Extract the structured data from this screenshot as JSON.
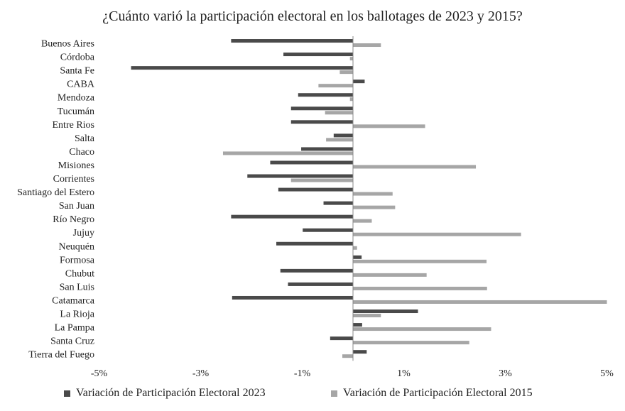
{
  "chart_data": {
    "type": "bar",
    "orientation": "horizontal",
    "title": "¿Cuánto varió la participación electoral en los ballotages de 2023 y 2015?",
    "xlabel": "",
    "ylabel": "",
    "xlim": [
      -5,
      5
    ],
    "xticks": [
      "-5%",
      "-3%",
      "-1%",
      "1%",
      "3%",
      "5%"
    ],
    "xtick_values": [
      -5,
      -3,
      -1,
      1,
      3,
      5
    ],
    "grid": false,
    "legend_position": "bottom",
    "categories": [
      "Buenos Aires",
      "Córdoba",
      "Santa Fe",
      "CABA",
      "Mendoza",
      "Tucumán",
      "Entre Rios",
      "Salta",
      "Chaco",
      "Misiones",
      "Corrientes",
      "Santiago del Estero",
      "San Juan",
      "Río Negro",
      "Jujuy",
      "Neuquén",
      "Formosa",
      "Chubut",
      "San Luis",
      "Catamarca",
      "La Rioja",
      "La Pampa",
      "Santa Cruz",
      "Tierra del Fuego"
    ],
    "series": [
      {
        "name": "Variación de Participación Electoral 2023",
        "color": "#4a4a4a",
        "values": [
          -2.4,
          -1.37,
          -4.37,
          0.23,
          -1.08,
          -1.22,
          -1.22,
          -0.38,
          -1.02,
          -1.63,
          -2.08,
          -1.47,
          -0.58,
          -2.4,
          -0.99,
          -1.51,
          0.17,
          -1.43,
          -1.28,
          -2.38,
          1.28,
          0.18,
          -0.45,
          0.27
        ]
      },
      {
        "name": "Variación de Participación Electoral 2015",
        "color": "#a6a6a6",
        "values": [
          0.55,
          -0.06,
          -0.26,
          -0.68,
          -0.06,
          -0.55,
          1.42,
          -0.53,
          -2.56,
          2.42,
          -1.22,
          0.78,
          0.83,
          0.37,
          3.31,
          0.08,
          2.63,
          1.45,
          2.64,
          5.0,
          0.55,
          2.72,
          2.29,
          -0.21
        ]
      }
    ]
  }
}
